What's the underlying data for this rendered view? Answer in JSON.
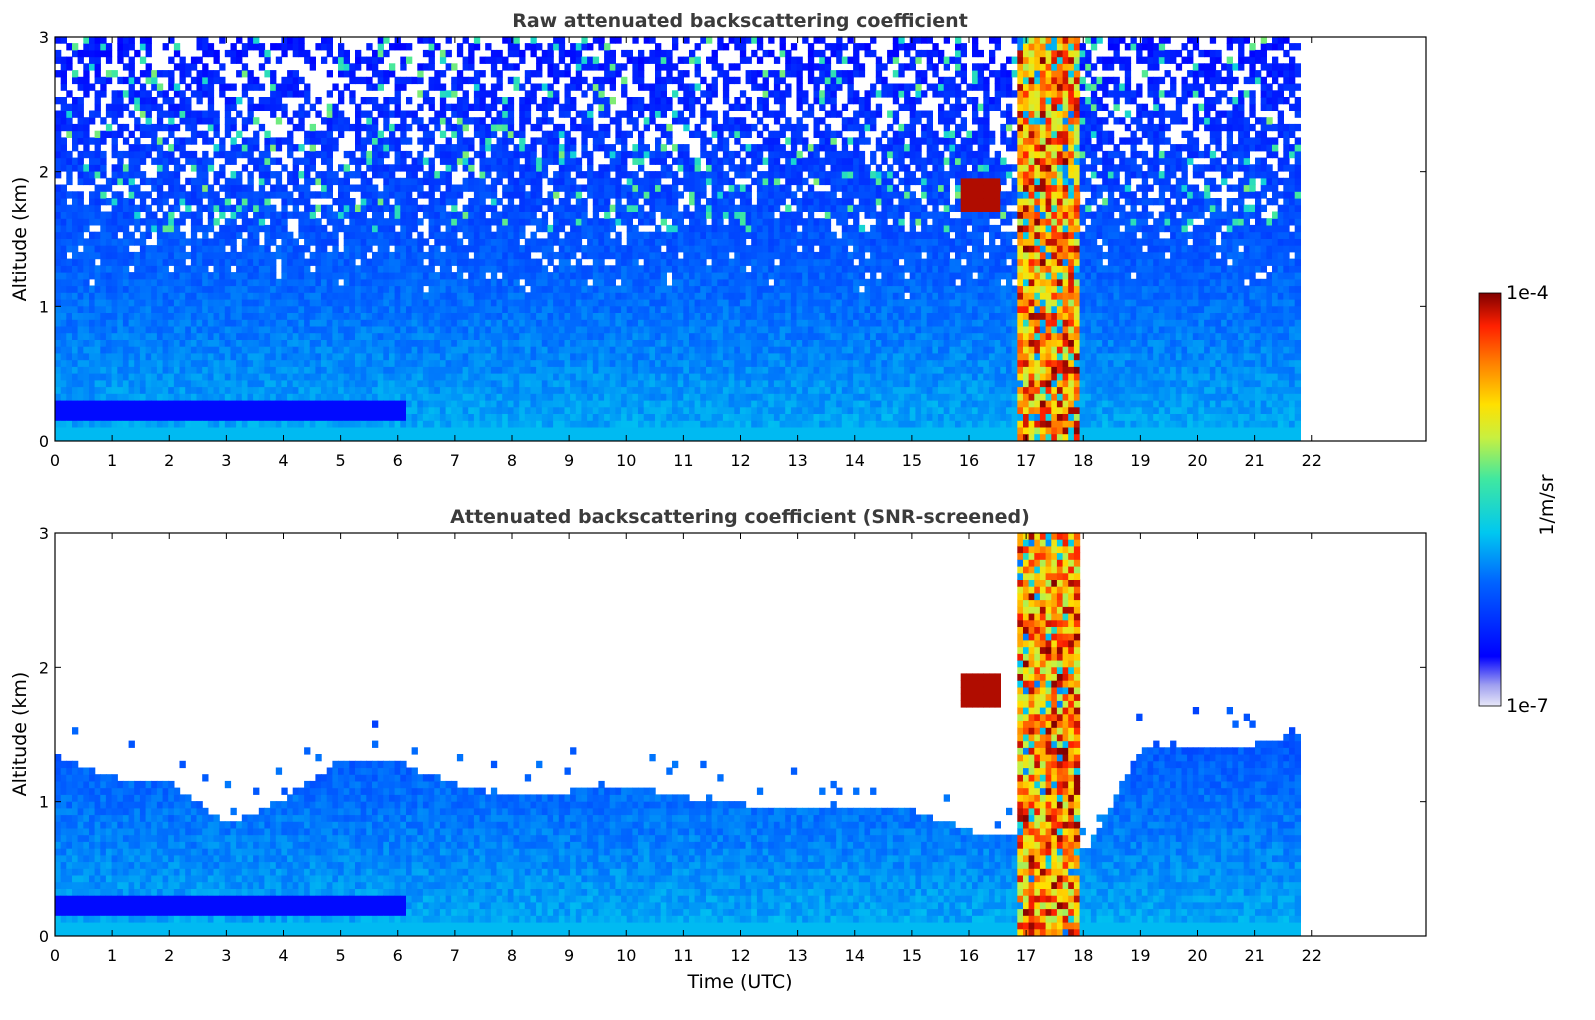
{
  "chart_data": [
    {
      "type": "heatmap",
      "title": "Raw attenuated backscattering coefficient",
      "xlabel": "",
      "ylabel": "Altitude (km)",
      "xlim": [
        0,
        24
      ],
      "ylim": [
        0,
        3
      ],
      "xticks": [
        "0",
        "1",
        "2",
        "3",
        "4",
        "5",
        "6",
        "7",
        "8",
        "9",
        "10",
        "11",
        "12",
        "13",
        "14",
        "15",
        "16",
        "17",
        "18",
        "19",
        "20",
        "21",
        "22"
      ],
      "yticks": [
        "0",
        "1",
        "2",
        "3"
      ],
      "data_coverage_end_hour": 21.8,
      "features": {
        "boundary_layer_dense_band": {
          "hours": [
            0,
            6.1
          ],
          "altitude_km": [
            0.15,
            0.3
          ]
        },
        "cloud_event": {
          "hours": [
            16.8,
            17.9
          ],
          "altitude_km": [
            0,
            3
          ]
        },
        "elevated_layer": {
          "hours": [
            15.8,
            16.5
          ],
          "altitude_km": [
            1.7,
            1.95
          ]
        },
        "noise_above_km": 1.0
      }
    },
    {
      "type": "heatmap",
      "title": "Attenuated backscattering coefficient (SNR-screened)",
      "xlabel": "Time (UTC)",
      "ylabel": "Altitude (km)",
      "xlim": [
        0,
        24
      ],
      "ylim": [
        0,
        3
      ],
      "xticks": [
        "0",
        "1",
        "2",
        "3",
        "4",
        "5",
        "6",
        "7",
        "8",
        "9",
        "10",
        "11",
        "12",
        "13",
        "14",
        "15",
        "16",
        "17",
        "18",
        "19",
        "20",
        "21",
        "22"
      ],
      "yticks": [
        "0",
        "1",
        "2",
        "3"
      ],
      "data_coverage_end_hour": 21.8,
      "features": {
        "boundary_layer_top_km": [
          1.3,
          1.15,
          1.1,
          0.8,
          1.0,
          1.3,
          1.25,
          1.1,
          1.0,
          1.05,
          1.1,
          1.0,
          0.95,
          0.95,
          0.9,
          0.9,
          0.75,
          0.7,
          0.6,
          1.4,
          1.35,
          1.4,
          1.5
        ],
        "cloud_event": {
          "hours": [
            16.8,
            17.9
          ],
          "altitude_km": [
            0,
            3
          ]
        },
        "elevated_layer": {
          "hours": [
            15.8,
            16.5
          ],
          "altitude_km": [
            1.7,
            1.95
          ]
        }
      }
    }
  ],
  "colorbar": {
    "max_label": "1e-4",
    "min_label": "1e-7",
    "unit_label": "1/m/sr",
    "colormap": "jet"
  },
  "colors": {
    "title_text": "#3b3b3b",
    "axis_text": "#000000"
  }
}
